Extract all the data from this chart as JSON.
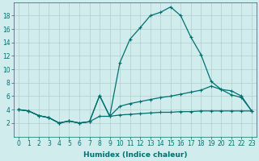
{
  "xlabel": "Humidex (Indice chaleur)",
  "x_values": [
    0,
    1,
    2,
    3,
    4,
    5,
    6,
    7,
    8,
    9,
    10,
    11,
    12,
    13,
    14,
    15,
    16,
    17,
    18,
    19,
    20,
    21,
    22,
    23
  ],
  "line1": [
    4.0,
    3.8,
    3.1,
    2.8,
    2.0,
    2.3,
    2.0,
    2.2,
    6.1,
    3.0,
    11.0,
    14.5,
    16.2,
    18.0,
    18.5,
    19.3,
    18.0,
    14.8,
    12.2,
    8.2,
    7.0,
    6.2,
    5.8,
    3.8
  ],
  "line2": [
    4.0,
    3.8,
    3.1,
    2.8,
    2.0,
    2.3,
    2.0,
    2.2,
    6.1,
    3.0,
    4.5,
    4.9,
    5.2,
    5.5,
    5.8,
    6.0,
    6.3,
    6.6,
    6.9,
    7.5,
    7.0,
    6.8,
    6.0,
    3.8
  ],
  "line3": [
    4.0,
    3.8,
    3.1,
    2.8,
    2.0,
    2.3,
    2.0,
    2.2,
    3.0,
    3.0,
    3.2,
    3.3,
    3.4,
    3.5,
    3.6,
    3.6,
    3.7,
    3.7,
    3.8,
    3.8,
    3.8,
    3.8,
    3.8,
    3.8
  ],
  "line_color": "#007070",
  "background_color": "#d0ecec",
  "grid_color": "#b0cece",
  "ylim": [
    0,
    20
  ],
  "xlim": [
    -0.5,
    23.5
  ],
  "yticks": [
    2,
    4,
    6,
    8,
    10,
    12,
    14,
    16,
    18
  ],
  "xticks": [
    0,
    1,
    2,
    3,
    4,
    5,
    6,
    7,
    8,
    9,
    10,
    11,
    12,
    13,
    14,
    15,
    16,
    17,
    18,
    19,
    20,
    21,
    22,
    23
  ],
  "tick_fontsize": 5.5,
  "label_fontsize": 6.5,
  "marker": "+",
  "markersize": 3.5,
  "linewidth": 0.9
}
